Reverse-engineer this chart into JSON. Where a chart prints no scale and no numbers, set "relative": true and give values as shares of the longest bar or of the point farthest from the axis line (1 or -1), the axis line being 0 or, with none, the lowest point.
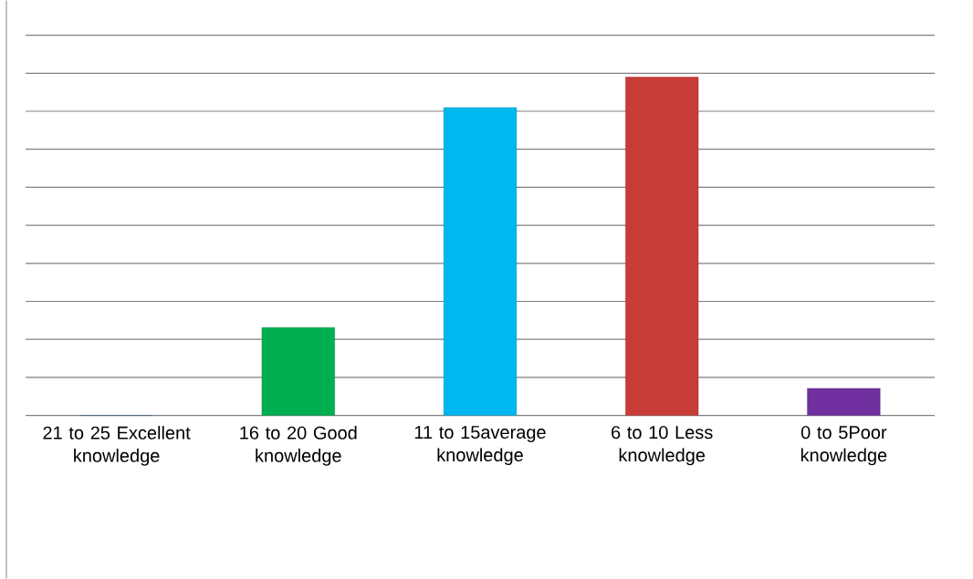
{
  "chart_data": {
    "type": "bar",
    "relative": true,
    "grid": "y",
    "categories": [
      "21 to 25 Excellent knowledge",
      "16 to 20 Good knowledge",
      "11 to 15average knowledge",
      "6 to 10 Less knowledge",
      "0  to 5Poor knowledge"
    ],
    "values": [
      0,
      0.26,
      0.91,
      1,
      0.08
    ],
    "colors": [
      "#4f81bd",
      "#00b050",
      "#00b8f0",
      "#c83c38",
      "#7030a0"
    ]
  }
}
